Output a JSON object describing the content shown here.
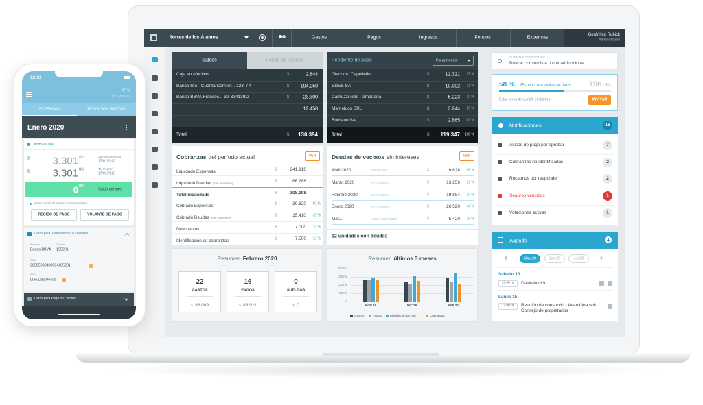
{
  "phone": {
    "status_time": "12:31",
    "weather": "2° D",
    "location": "SN - LLAO LLAO",
    "tabs": [
      "EXPENSAS",
      "RENDICIÓN GASTOS"
    ],
    "period": "Enero 2020",
    "status": "ESTÁ AL DÍA",
    "amounts": [
      {
        "currency": "$",
        "integer": "3.301",
        "cents": "00",
        "label": "2do Vencimiento",
        "date": "17/01/2020"
      },
      {
        "currency": "$",
        "integer": "3.301",
        "cents": "00",
        "label": "TU PAGO:",
        "date": "17/01/2020"
      }
    ],
    "balance": {
      "integer": "0",
      "cents": "00",
      "label": "Saldo del mes"
    },
    "note": "Monto calculado para el 2do vencimiento.",
    "buttons": [
      "RECIBO DE PAGO",
      "VOLANTE DE PAGO"
    ],
    "transfer": {
      "title": "Datos para Transferencia o Depósito",
      "fields": [
        {
          "label": "Entidad",
          "value": "Banco BBVA"
        },
        {
          "label": "Cuenta",
          "value": "135201"
        },
        {
          "label": "CBU",
          "value": "28505909400904185201"
        },
        {
          "label": "Alias",
          "value": "Llao.Llao.Pesos"
        }
      ]
    },
    "cash_title": "Datos para Pago en Efectivo"
  },
  "nav": {
    "building": "Torres de los Álamos",
    "items": [
      "Gastos",
      "Pagos",
      "Ingresos",
      "Fondos",
      "Expensas"
    ],
    "user": {
      "name": "Gerónimo Rubick",
      "role": "Administrador"
    }
  },
  "balances": {
    "tabs": [
      "Saldos",
      "Fondo de reserva"
    ],
    "rows": [
      {
        "label": "Caja en efectivo",
        "currency": "$",
        "amount": "2.844"
      },
      {
        "label": "Banco Rio - Cuenta Corrien... 123- / 4",
        "currency": "$",
        "amount": "104.250"
      },
      {
        "label": "Banco BBVA Frances... 39-324139/2",
        "currency": "$",
        "amount": "23.300"
      },
      {
        "amount": "19.458"
      }
    ],
    "total": {
      "label": "Total",
      "currency": "$",
      "amount": "130.394"
    }
  },
  "pending": {
    "title": "Pendiente de pago",
    "filter": "Por proveedor",
    "rows": [
      {
        "label": "Giacomo Capelletini",
        "currency": "$",
        "amount": "12.321",
        "share": "25 %"
      },
      {
        "label": "EDES SA",
        "currency": "$",
        "amount": "10.902",
        "share": "21 %"
      },
      {
        "label": "Camuzzi Gas Pampeana",
        "currency": "$",
        "amount": "6.223",
        "share": "10 %"
      },
      {
        "label": "Mameluco SRL",
        "currency": "$",
        "amount": "3.944",
        "share": "05 %"
      },
      {
        "label": "Burbano SA",
        "currency": "$",
        "amount": "2.885",
        "share": "03 %"
      }
    ],
    "total": {
      "label": "Total",
      "currency": "$",
      "amount": "119.347",
      "share": "100 %"
    }
  },
  "collections": {
    "title": "Cobranzas",
    "subtitle": "del período actual",
    "action": "VER",
    "rows": [
      {
        "label": "Liquidado Expensas",
        "currency": "$",
        "amount": "241.910"
      },
      {
        "label": "Liquidado Deudas",
        "note": "(con intereses)",
        "currency": "$",
        "amount": "66.288"
      },
      {
        "label": "Total recaudado",
        "currency": "$",
        "amount": "308.198"
      },
      {
        "label": "Cobrado Expensas",
        "currency": "$",
        "amount": "30.820",
        "share": "50 %"
      },
      {
        "label": "Cobrado Deudas",
        "note": "(con intereses)",
        "currency": "$",
        "amount": "15.410",
        "share": "25 %"
      },
      {
        "label": "Descuentos",
        "currency": "$",
        "amount": "7.000",
        "share": "12 %"
      },
      {
        "label": "Identificación de cobranzas",
        "currency": "$",
        "amount": "7.500",
        "share": "13 %"
      }
    ]
  },
  "debts": {
    "title": "Deudas de vecinos",
    "subtitle": "sin intereses",
    "action": "VER",
    "rows": [
      {
        "label": "Abril 2020",
        "periods": "1 PERÍODO",
        "currency": "$",
        "amount": "6.628",
        "share": "08 %"
      },
      {
        "label": "Marzo 2020",
        "periods": "2 PERÍODOS",
        "currency": "$",
        "amount": "13.256",
        "share": "16 %"
      },
      {
        "label": "Febrero 2020",
        "periods": "3 PERÍODOS",
        "currency": "$",
        "amount": "19.884",
        "share": "20 %"
      },
      {
        "label": "Enero 2020",
        "periods": "4 PERÍODOS",
        "currency": "$",
        "amount": "26.520",
        "share": "40 %"
      },
      {
        "label": "Más...",
        "periods": "+ DE 4 PERÍODOS",
        "currency": "$",
        "amount": "5.420",
        "share": "16 %"
      }
    ],
    "footer": "12 unidades con deudas"
  },
  "summary_month": {
    "title": "Resumen",
    "highlight": "Febrero 2020",
    "boxes": [
      {
        "count": "22",
        "label": "GASTOS",
        "currency": "$",
        "amount": "98.009"
      },
      {
        "count": "16",
        "label": "PAGOS",
        "currency": "$",
        "amount": "88.921"
      },
      {
        "count": "0",
        "label": "SUELDOS",
        "currency": "$",
        "amount": "0"
      }
    ]
  },
  "summary_chart": {
    "type": "bar",
    "title": "Resumen",
    "highlight": "últimos 3 meses",
    "categories": [
      "NOV 19",
      "DIC 19",
      "ENE 20"
    ],
    "series": [
      {
        "name": "Gastos",
        "color": "#37474f",
        "values": [
          130000,
          120000,
          140000
        ]
      },
      {
        "name": "Pagos",
        "color": "#9aa5ab",
        "values": [
          130000,
          105000,
          115000
        ]
      },
      {
        "name": "Liquidación de exp.",
        "color": "#3fa9d6",
        "values": [
          140000,
          155000,
          170000
        ]
      },
      {
        "name": "Cobranzas",
        "color": "#f0922a",
        "values": [
          130000,
          125000,
          110000
        ]
      }
    ],
    "ylim": [
      0,
      200000
    ],
    "yticks": [
      0,
      {
        "value": 50000,
        "label": "50 mil"
      },
      {
        "value": 100000,
        "label": "100 mil"
      },
      {
        "value": 150000,
        "label": "150 mil"
      },
      {
        "value": 200000,
        "label": "200 mil"
      }
    ],
    "grid": true
  },
  "accounts_search": {
    "label": "CUENTAS CORRIENTES",
    "placeholder": "Buscar consorcista o unidad funcional"
  },
  "users_goal": {
    "percent": "58 %",
    "label": "UFs con usuarios activos",
    "total": "196",
    "unit": "UFs",
    "message": "Estás cerca de cumplir el objetivo",
    "action": "INVITAR"
  },
  "notifications": {
    "title": "Notificaciones",
    "count": "16",
    "items": [
      {
        "label": "Avisos de pago por aprobar",
        "count": "7"
      },
      {
        "label": "Cobranzas no identificadas",
        "count": "2"
      },
      {
        "label": "Reclamos por responder",
        "count": "2"
      },
      {
        "label": "Seguros vencidos",
        "count": "1"
      },
      {
        "label": "Votaciones activas",
        "count": "1"
      }
    ]
  },
  "agenda": {
    "title": "Agenda",
    "months": [
      "May 20",
      "Jun 20",
      "Jul 20"
    ],
    "events": [
      {
        "day": "Sábado 13",
        "time": "10:00 hs",
        "title": "Desinfección"
      },
      {
        "day": "Lunes 15",
        "time": "12:00 hs",
        "title": "Reunión de consorcio - Asamblea solo Consejo de propietarios"
      }
    ]
  }
}
